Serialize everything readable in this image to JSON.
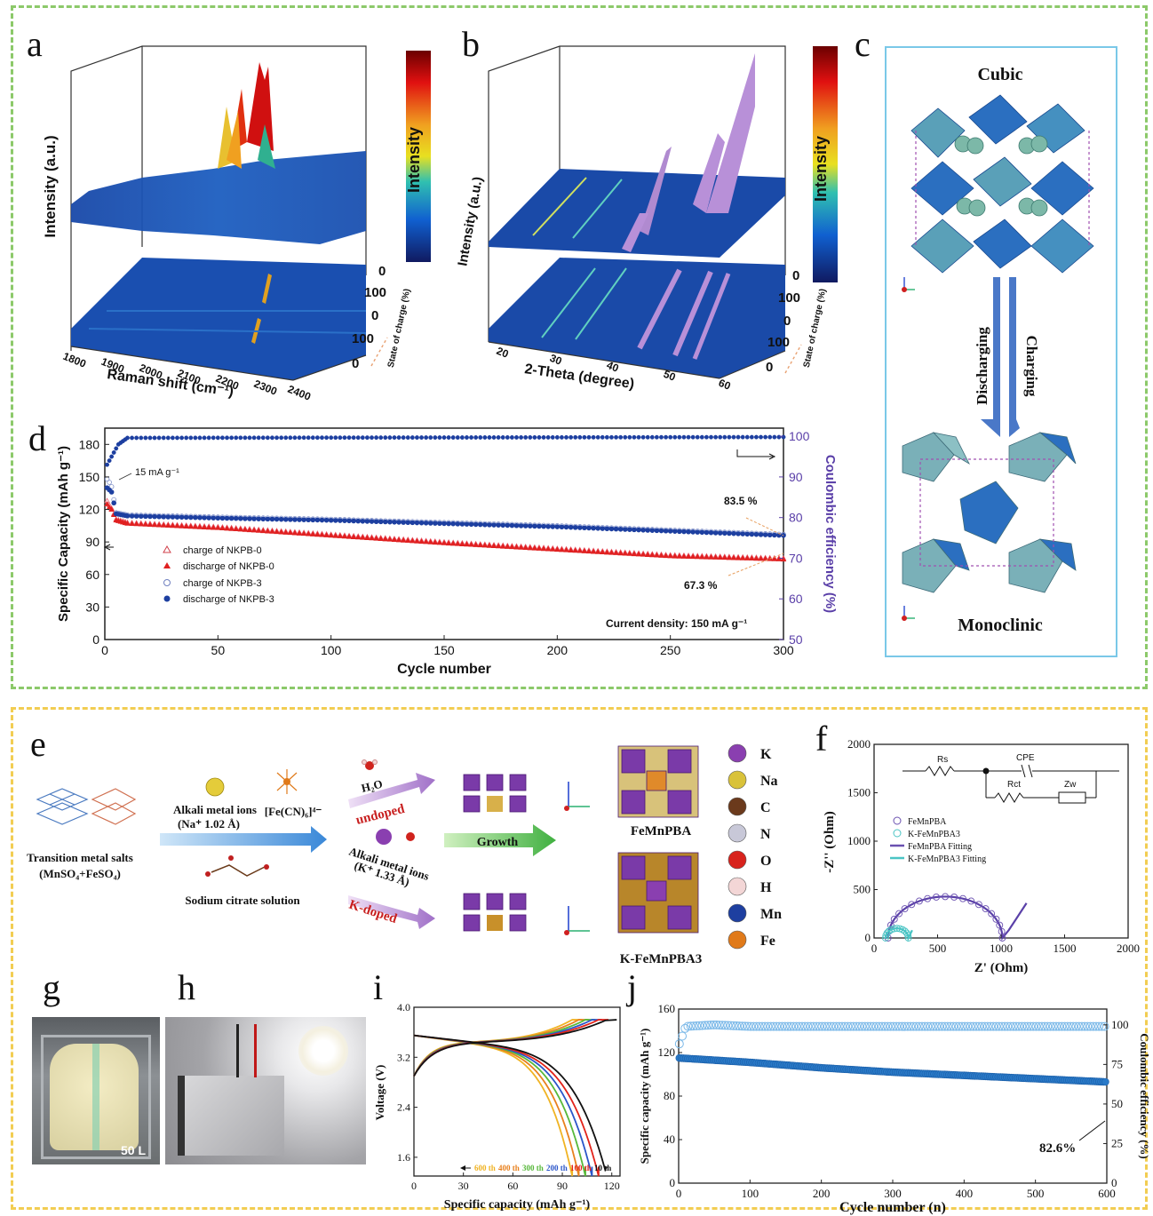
{
  "panel_labels": {
    "a": "a",
    "b": "b",
    "c": "c",
    "d": "d",
    "e": "e",
    "f": "f",
    "g": "g",
    "h": "h",
    "i": "i",
    "j": "j"
  },
  "panel_a": {
    "ylabel": "Intensity (a.u.)",
    "xlabel": "Raman shift (cm⁻¹)",
    "xticks": [
      "1800",
      "1900",
      "2000",
      "2100",
      "2200",
      "2300",
      "2400"
    ],
    "soc_label": "State of charge (%)",
    "soc_ticks": [
      "0",
      "100",
      "0",
      "100",
      "0"
    ],
    "colorbar_label": "Intensity"
  },
  "panel_b": {
    "ylabel": "Intensity (a.u.)",
    "xlabel": "2-Theta (degree)",
    "xticks": [
      "20",
      "30",
      "40",
      "50",
      "60"
    ],
    "soc_label": "State of charge (%)",
    "soc_ticks": [
      "0",
      "100",
      "0",
      "100",
      "0"
    ],
    "colorbar_label": "Intensity"
  },
  "panel_c": {
    "top_label": "Cubic",
    "bottom_label": "Monoclinic",
    "discharging": "Discharging",
    "charging": "Charging"
  },
  "panel_d": {
    "ylabel_left": "Specific Capacity (mAh g⁻¹)",
    "ylabel_right": "Coulombic efficiency (%)",
    "xlabel": "Cycle number",
    "xticks": [
      "0",
      "50",
      "100",
      "150",
      "200",
      "250",
      "300"
    ],
    "yticks_left": [
      "0",
      "30",
      "60",
      "90",
      "120",
      "150",
      "180"
    ],
    "yticks_right": [
      "50",
      "60",
      "70",
      "80",
      "90",
      "100"
    ],
    "annotation_rate": "15 mA g⁻¹",
    "annotation_835": "83.5 %",
    "annotation_673": "67.3 %",
    "current_density": "Current density: 150 mA g⁻¹",
    "legend": [
      "charge of NKPB-0",
      "discharge of NKPB-0",
      "charge of NKPB-3",
      "discharge of NKPB-3"
    ]
  },
  "panel_e": {
    "transition_salts_1": "Transition metal salts",
    "transition_salts_2": "(MnSO₄+FeSO₄)",
    "alkali_1": "Alkali metal ions",
    "alkali_2": "(Na⁺ 1.02 Å)",
    "ferrocyanide": "[Fe(CN)₆]⁴⁻",
    "citrate": "Sodium citrate solution",
    "h2o": "H₂O",
    "undoped": "undoped",
    "alkali_k_1": "Alkali metal ions",
    "alkali_k_2": "(K⁺ 1.33 Å)",
    "kdoped": "K-doped",
    "growth": "Growth",
    "fempba": "FeMnPBA",
    "kfempba": "K-FeMnPBA3",
    "legend": [
      {
        "sym": "K",
        "color": "#8a3fb0"
      },
      {
        "sym": "Na",
        "color": "#d9c23a"
      },
      {
        "sym": "C",
        "color": "#6b3a1c"
      },
      {
        "sym": "N",
        "color": "#c8c8d8"
      },
      {
        "sym": "O",
        "color": "#d8231d"
      },
      {
        "sym": "H",
        "color": "#f3d6d6"
      },
      {
        "sym": "Mn",
        "color": "#1e3fa0"
      },
      {
        "sym": "Fe",
        "color": "#e07a1a"
      }
    ]
  },
  "panel_f": {
    "ylabel": "-Z'' (Ohm)",
    "xlabel": "Z' (Ohm)",
    "xticks": [
      "0",
      "500",
      "1000",
      "1500",
      "2000"
    ],
    "yticks": [
      "0",
      "500",
      "1000",
      "1500",
      "2000"
    ],
    "circuit": {
      "rs": "Rs",
      "cpe": "CPE",
      "rct": "Rct",
      "zw": "Zw"
    },
    "legend": [
      "FeMnPBA",
      "K-FeMnPBA3",
      "FeMnPBA Fitting",
      "K-FeMnPBA3 Fitting"
    ]
  },
  "panel_g": {
    "volume": "50 L"
  },
  "panel_i": {
    "ylabel": "Voltage (V)",
    "xlabel": "Specific capacity (mAh g⁻¹)",
    "xticks": [
      "0",
      "30",
      "60",
      "90",
      "120"
    ],
    "yticks": [
      "1.6",
      "2.4",
      "3.2",
      "4.0"
    ],
    "cycles": [
      {
        "label": "600 th",
        "color": "#f0b323"
      },
      {
        "label": "400 th",
        "color": "#e8811e"
      },
      {
        "label": "300 th",
        "color": "#57b83a"
      },
      {
        "label": "200 th",
        "color": "#2b56c9"
      },
      {
        "label": "100 th",
        "color": "#e2231a"
      },
      {
        "label": "10 th",
        "color": "#111111"
      }
    ]
  },
  "panel_j": {
    "ylabel_left": "Specific capacity (mAh g⁻¹)",
    "ylabel_right": "Coulombic efficiency (%)",
    "xlabel": "Cycle number (n)",
    "xticks": [
      "0",
      "100",
      "200",
      "300",
      "400",
      "500",
      "600"
    ],
    "yticks_left": [
      "0",
      "40",
      "80",
      "120",
      "160"
    ],
    "yticks_right": [
      "0",
      "25",
      "50",
      "75",
      "100"
    ],
    "annotation": "82.6%"
  },
  "chart_data": [
    {
      "type": "scatter",
      "panel": "d",
      "xlabel": "Cycle number",
      "ylabel": "Specific Capacity (mAh g⁻¹)",
      "xlim": [
        0,
        300
      ],
      "ylim": [
        0,
        195
      ],
      "y2lim": [
        50,
        102
      ],
      "series": [
        {
          "name": "charge of NKPB-0",
          "x": [
            1,
            2,
            3,
            5,
            10,
            50,
            100,
            150,
            200,
            250,
            300
          ],
          "y": [
            128,
            124,
            121,
            111,
            108,
            104,
            97,
            90,
            84,
            78,
            75
          ]
        },
        {
          "name": "discharge of NKPB-0",
          "x": [
            1,
            2,
            3,
            5,
            10,
            50,
            100,
            150,
            200,
            250,
            300
          ],
          "y": [
            125,
            122,
            120,
            110,
            107,
            103,
            96,
            89,
            83,
            77,
            74
          ]
        },
        {
          "name": "charge of NKPB-3",
          "x": [
            1,
            2,
            3,
            5,
            10,
            50,
            100,
            150,
            200,
            250,
            300
          ],
          "y": [
            148,
            145,
            141,
            117,
            115,
            113,
            111,
            108,
            105,
            101,
            97
          ]
        },
        {
          "name": "discharge of NKPB-3",
          "x": [
            1,
            2,
            3,
            5,
            10,
            50,
            100,
            150,
            200,
            250,
            300
          ],
          "y": [
            140,
            138,
            136,
            116,
            114,
            112,
            110,
            107,
            104,
            100,
            96
          ]
        }
      ]
    },
    {
      "type": "line",
      "panel": "i",
      "xlabel": "Specific capacity (mAh g⁻¹)",
      "ylabel": "Voltage (V)",
      "xlim": [
        0,
        125
      ],
      "ylim": [
        1.3,
        4.0
      ],
      "series": [
        {
          "name": "600 th",
          "capacity": 96
        },
        {
          "name": "400 th",
          "capacity": 100
        },
        {
          "name": "300 th",
          "capacity": 104
        },
        {
          "name": "200 th",
          "capacity": 108
        },
        {
          "name": "100 th",
          "capacity": 112
        },
        {
          "name": "10 th",
          "capacity": 117
        }
      ]
    },
    {
      "type": "scatter",
      "panel": "j",
      "xlabel": "Cycle number (n)",
      "ylabel": "Specific capacity (mAh g⁻¹)",
      "xlim": [
        0,
        600
      ],
      "ylim": [
        0,
        160
      ],
      "y2lim": [
        0,
        110
      ],
      "series": [
        {
          "name": "capacity",
          "x": [
            1,
            100,
            200,
            300,
            400,
            500,
            600
          ],
          "y": [
            115,
            111,
            106,
            102,
            99,
            96,
            93
          ]
        },
        {
          "name": "coulombic efficiency",
          "x": [
            1,
            10,
            50,
            100,
            300,
            600
          ],
          "y": [
            88,
            99,
            100,
            99,
            99,
            99
          ]
        }
      ]
    }
  ]
}
